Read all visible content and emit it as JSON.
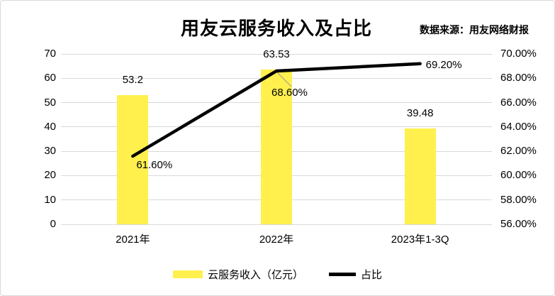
{
  "title": "用友云服务收入及占比",
  "source": "数据来源：用友网络财报",
  "colors": {
    "bar": "#FFF04D",
    "line": "#000000",
    "grid": "#D9D9D9",
    "leader": "#999999",
    "text": "#000000"
  },
  "chart_data": {
    "type": "bar",
    "subtype": "bar-line-combo",
    "title": "用友云服务收入及占比",
    "source_note": "数据来源：用友网络财报",
    "categories": [
      "2021年",
      "2022年",
      "2023年1-3Q"
    ],
    "series": [
      {
        "name": "云服务收入（亿元）",
        "type": "bar",
        "axis": "left",
        "values": [
          53.2,
          63.53,
          39.48
        ],
        "labels": [
          "53.2",
          "63.53",
          "39.48"
        ],
        "color": "#FFF04D"
      },
      {
        "name": "占比",
        "type": "line",
        "axis": "right",
        "values": [
          61.6,
          68.6,
          69.2
        ],
        "labels": [
          "61.60%",
          "68.60%",
          "69.20%"
        ],
        "color": "#000000"
      }
    ],
    "left_axis": {
      "min": 0,
      "max": 70,
      "tick_values": [
        0,
        10,
        20,
        30,
        40,
        50,
        60,
        70
      ],
      "tick_labels": [
        "0",
        "10",
        "20",
        "30",
        "40",
        "50",
        "60",
        "70"
      ]
    },
    "right_axis": {
      "min": 56,
      "max": 70,
      "tick_values": [
        56,
        58,
        60,
        62,
        64,
        66,
        68,
        70
      ],
      "tick_labels": [
        "56.00%",
        "58.00%",
        "60.00%",
        "62.00%",
        "64.00%",
        "66.00%",
        "68.00%",
        "70.00%"
      ]
    },
    "grid": true,
    "legend_position": "bottom"
  },
  "legend": {
    "items": [
      {
        "label": "云服务收入（亿元）",
        "swatch": "bar"
      },
      {
        "label": "占比",
        "swatch": "line"
      }
    ]
  }
}
